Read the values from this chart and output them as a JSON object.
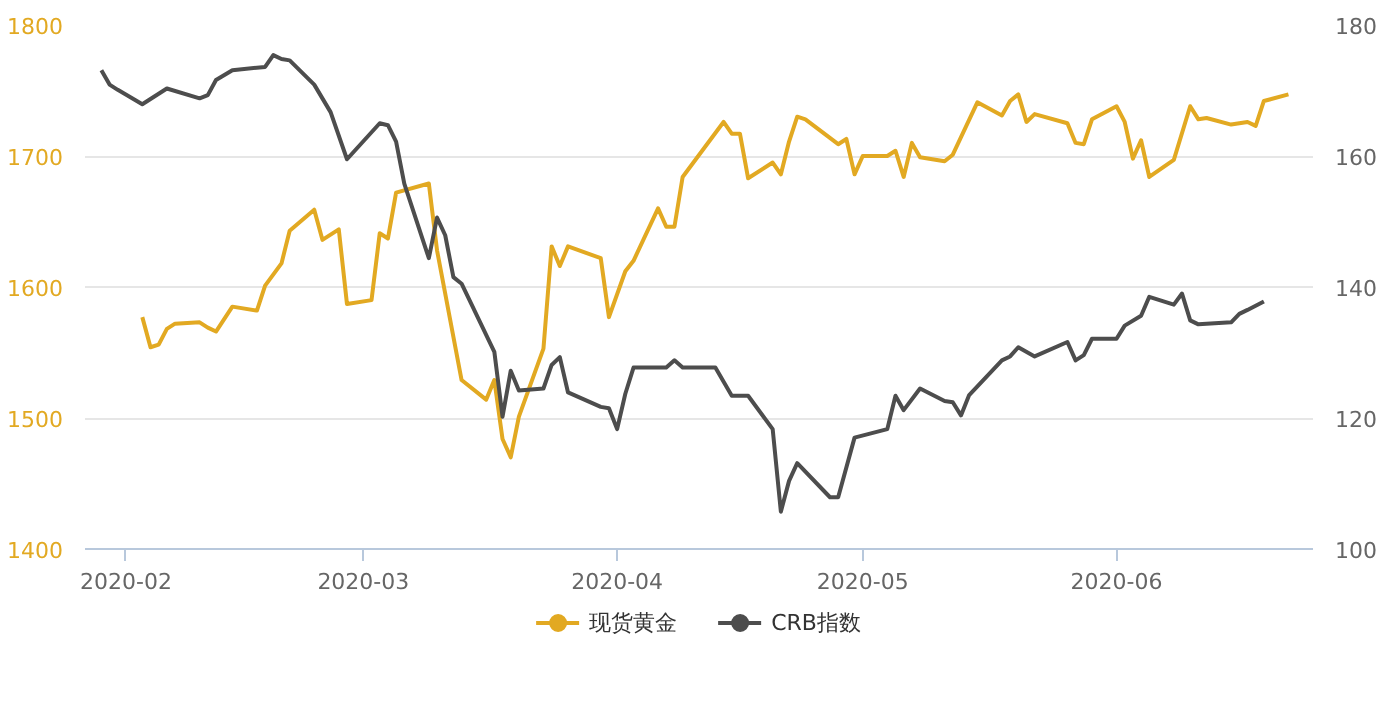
{
  "chart_data": {
    "type": "line",
    "xlim": [
      "2020-01-27",
      "2020-06-25"
    ],
    "xticks": [
      "2020-02",
      "2020-03",
      "2020-04",
      "2020-05",
      "2020-06"
    ],
    "ylim": [
      1400,
      1800
    ],
    "yticks": [
      1400,
      1500,
      1600,
      1700,
      1800
    ],
    "y2lim": [
      100,
      180
    ],
    "y2ticks": [
      100,
      120,
      140,
      160,
      180
    ],
    "grid": "y",
    "legend": "bottom",
    "series": [
      {
        "name": "现货黄金",
        "color": "#e2a922",
        "x": [
          "2020-02-03",
          "2020-02-04",
          "2020-02-05",
          "2020-02-06",
          "2020-02-07",
          "2020-02-10",
          "2020-02-11",
          "2020-02-12",
          "2020-02-14",
          "2020-02-17",
          "2020-02-18",
          "2020-02-20",
          "2020-02-21",
          "2020-02-24",
          "2020-02-25",
          "2020-02-27",
          "2020-02-28",
          "2020-03-02",
          "2020-03-03",
          "2020-03-04",
          "2020-03-05",
          "2020-03-09",
          "2020-03-10",
          "2020-03-13",
          "2020-03-16",
          "2020-03-17",
          "2020-03-18",
          "2020-03-19",
          "2020-03-20",
          "2020-03-23",
          "2020-03-24",
          "2020-03-25",
          "2020-03-26",
          "2020-03-30",
          "2020-03-31",
          "2020-04-02",
          "2020-04-03",
          "2020-04-06",
          "2020-04-07",
          "2020-04-08",
          "2020-04-09",
          "2020-04-14",
          "2020-04-15",
          "2020-04-16",
          "2020-04-17",
          "2020-04-20",
          "2020-04-21",
          "2020-04-22",
          "2020-04-23",
          "2020-04-24",
          "2020-04-28",
          "2020-04-29",
          "2020-04-30",
          "2020-05-01",
          "2020-05-04",
          "2020-05-05",
          "2020-05-06",
          "2020-05-07",
          "2020-05-08",
          "2020-05-11",
          "2020-05-12",
          "2020-05-15",
          "2020-05-18",
          "2020-05-19",
          "2020-05-20",
          "2020-05-21",
          "2020-05-22",
          "2020-05-26",
          "2020-05-27",
          "2020-05-28",
          "2020-05-29",
          "2020-06-01",
          "2020-06-02",
          "2020-06-03",
          "2020-06-04",
          "2020-06-05",
          "2020-06-08",
          "2020-06-10",
          "2020-06-11",
          "2020-06-12",
          "2020-06-15",
          "2020-06-17",
          "2020-06-18",
          "2020-06-19",
          "2020-06-22"
        ],
        "values": [
          1577,
          1554,
          1556,
          1568,
          1572,
          1573,
          1569,
          1566,
          1585,
          1582,
          1601,
          1618,
          1643,
          1659,
          1636,
          1644,
          1587,
          1590,
          1641,
          1637,
          1672,
          1679,
          1628,
          1529,
          1514,
          1529,
          1484,
          1470,
          1501,
          1553,
          1631,
          1616,
          1631,
          1622,
          1577,
          1612,
          1620,
          1660,
          1646,
          1646,
          1684,
          1726,
          1717,
          1717,
          1683,
          1695,
          1686,
          1711,
          1730,
          1728,
          1709,
          1713,
          1686,
          1700,
          1700,
          1704,
          1684,
          1710,
          1699,
          1696,
          1701,
          1741,
          1731,
          1742,
          1747,
          1726,
          1732,
          1725,
          1710,
          1709,
          1728,
          1738,
          1726,
          1698,
          1712,
          1684,
          1697,
          1738,
          1728,
          1729,
          1724,
          1726,
          1723,
          1742,
          1747
        ]
      },
      {
        "name": "CRB指数",
        "color": "#4d4d4d",
        "axis": "y2",
        "x": [
          "2020-01-29",
          "2020-01-30",
          "2020-01-31",
          "2020-02-03",
          "2020-02-06",
          "2020-02-10",
          "2020-02-11",
          "2020-02-12",
          "2020-02-14",
          "2020-02-18",
          "2020-02-19",
          "2020-02-20",
          "2020-02-21",
          "2020-02-24",
          "2020-02-26",
          "2020-02-28",
          "2020-03-03",
          "2020-03-04",
          "2020-03-05",
          "2020-03-06",
          "2020-03-09",
          "2020-03-10",
          "2020-03-11",
          "2020-03-12",
          "2020-03-13",
          "2020-03-17",
          "2020-03-18",
          "2020-03-19",
          "2020-03-20",
          "2020-03-23",
          "2020-03-24",
          "2020-03-25",
          "2020-03-26",
          "2020-03-30",
          "2020-03-31",
          "2020-04-01",
          "2020-04-02",
          "2020-04-03",
          "2020-04-07",
          "2020-04-08",
          "2020-04-09",
          "2020-04-13",
          "2020-04-15",
          "2020-04-17",
          "2020-04-20",
          "2020-04-21",
          "2020-04-22",
          "2020-04-23",
          "2020-04-27",
          "2020-04-28",
          "2020-04-30",
          "2020-05-04",
          "2020-05-05",
          "2020-05-06",
          "2020-05-08",
          "2020-05-11",
          "2020-05-12",
          "2020-05-13",
          "2020-05-14",
          "2020-05-18",
          "2020-05-19",
          "2020-05-20",
          "2020-05-22",
          "2020-05-26",
          "2020-05-27",
          "2020-05-28",
          "2020-05-29",
          "2020-06-01",
          "2020-06-02",
          "2020-06-04",
          "2020-06-05",
          "2020-06-08",
          "2020-06-09",
          "2020-06-10",
          "2020-06-11",
          "2020-06-15",
          "2020-06-16",
          "2020-06-17",
          "2020-06-19"
        ],
        "values": [
          173.1,
          170.9,
          170.1,
          167.9,
          170.3,
          168.8,
          169.3,
          171.6,
          173.1,
          173.6,
          175.4,
          174.8,
          174.6,
          170.9,
          166.7,
          159.5,
          165.0,
          164.7,
          162.2,
          155.8,
          144.4,
          150.6,
          147.9,
          141.5,
          140.5,
          130.1,
          120.2,
          127.2,
          124.2,
          124.5,
          128.1,
          129.3,
          123.9,
          121.7,
          121.5,
          118.3,
          123.7,
          127.7,
          127.7,
          128.8,
          127.7,
          127.7,
          123.4,
          123.4,
          118.3,
          105.7,
          110.4,
          113.1,
          107.9,
          107.9,
          117.0,
          118.3,
          123.4,
          121.2,
          124.5,
          122.6,
          122.4,
          120.4,
          123.5,
          128.8,
          129.4,
          130.8,
          129.4,
          131.6,
          128.8,
          129.6,
          132.1,
          132.1,
          134.1,
          135.6,
          138.5,
          137.3,
          139.0,
          134.9,
          134.3,
          134.6,
          135.9,
          136.5,
          137.8
        ]
      }
    ]
  }
}
